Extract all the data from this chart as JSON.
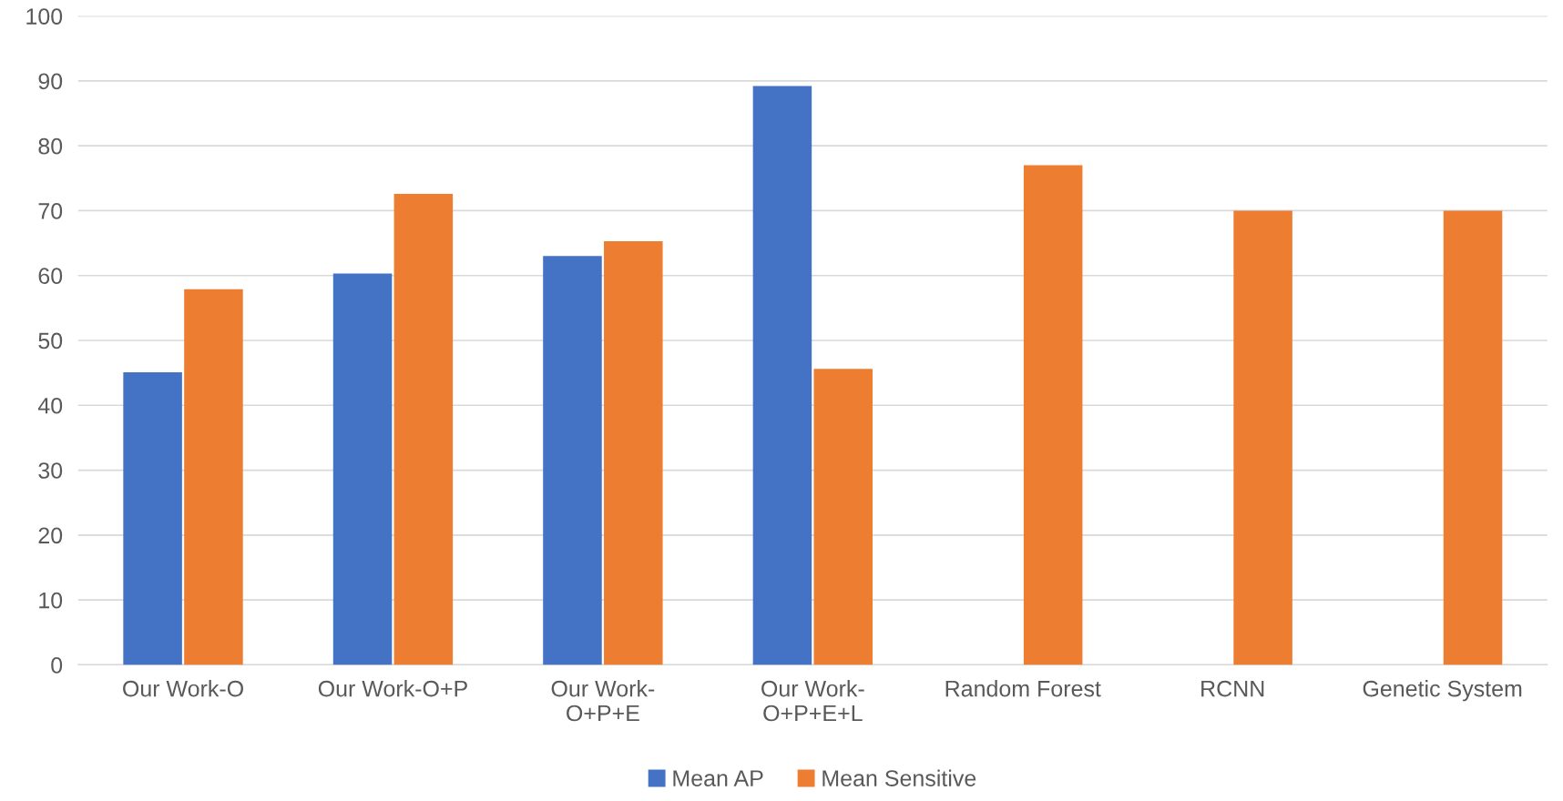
{
  "chart_data": {
    "type": "bar",
    "categories": [
      "Our Work-O",
      "Our Work-O+P",
      "Our Work-\nO+P+E",
      "Our Work-\nO+P+E+L",
      "Random Forest",
      "RCNN",
      "Genetic System"
    ],
    "series": [
      {
        "name": "Mean AP",
        "color": "#4472c4",
        "values": [
          45.1,
          60.3,
          63.0,
          89.2,
          null,
          null,
          null
        ]
      },
      {
        "name": "Mean Sensitive",
        "color": "#ed7d31",
        "values": [
          57.9,
          72.6,
          65.3,
          45.6,
          77.0,
          70.0,
          70.0
        ]
      }
    ],
    "ylim": [
      0,
      100
    ],
    "yticks": [
      0,
      10,
      20,
      30,
      40,
      50,
      60,
      70,
      80,
      90,
      100
    ],
    "grid": "y",
    "legend": "bottom"
  }
}
